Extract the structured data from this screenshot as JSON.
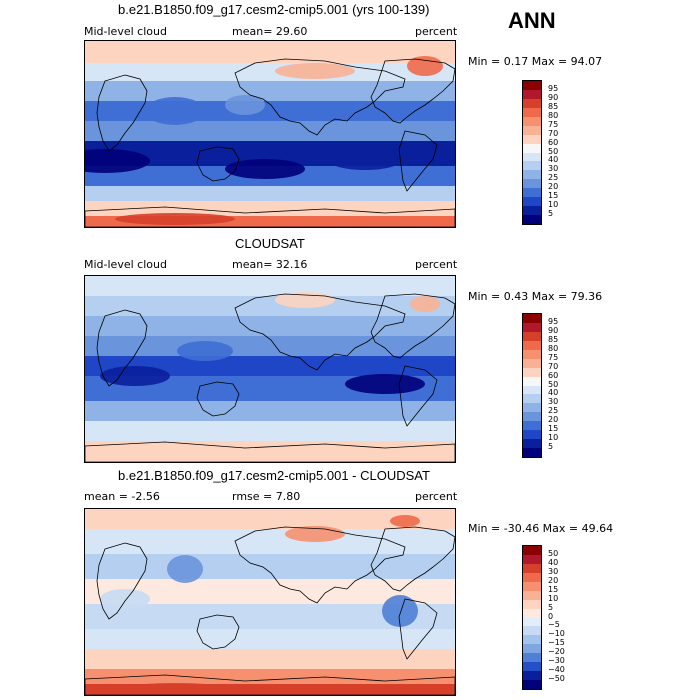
{
  "season": "ANN",
  "panels": [
    {
      "title": "b.e21.B1850.f09_g17.cesm2-cmip5.001 (yrs 100-139)",
      "left_label": "Mid-level cloud",
      "mean_text": "mean=  29.60",
      "unit": "percent",
      "minmax": "Min =   0.17 Max =  94.07",
      "colorbar_labels": [
        "95",
        "90",
        "85",
        "80",
        "75",
        "70",
        "60",
        "50",
        "40",
        "30",
        "25",
        "20",
        "15",
        "10",
        "5"
      ],
      "colorbar_colors": [
        "#8b0000",
        "#b2182b",
        "#d6402b",
        "#ee6a4a",
        "#f6906f",
        "#f9b195",
        "#fcd4c0",
        "#f7f7f7",
        "#d6e6f7",
        "#b4cff0",
        "#8fb3e6",
        "#6a94dc",
        "#3f6ed4",
        "#1f46c7",
        "#0a1f9c",
        "#00007a"
      ],
      "map_style": "model"
    },
    {
      "title": "CLOUDSAT",
      "left_label": "Mid-level cloud",
      "mean_text": "mean=  32.16",
      "unit": "percent",
      "minmax": "Min =   0.43 Max =  79.36",
      "colorbar_labels": [
        "95",
        "90",
        "85",
        "80",
        "75",
        "70",
        "60",
        "50",
        "40",
        "30",
        "25",
        "20",
        "15",
        "10",
        "5"
      ],
      "colorbar_colors": [
        "#8b0000",
        "#b2182b",
        "#d6402b",
        "#ee6a4a",
        "#f6906f",
        "#f9b195",
        "#fcd4c0",
        "#f7f7f7",
        "#d6e6f7",
        "#b4cff0",
        "#8fb3e6",
        "#6a94dc",
        "#3f6ed4",
        "#1f46c7",
        "#0a1f9c",
        "#00007a"
      ],
      "map_style": "obs"
    },
    {
      "title": "b.e21.B1850.f09_g17.cesm2-cmip5.001 - CLOUDSAT",
      "left_label": "mean =   -2.56",
      "mean_text": "rmse =    7.80",
      "unit": "percent",
      "minmax": "Min = -30.46 Max =  49.64",
      "colorbar_labels": [
        "50",
        "40",
        "30",
        "20",
        "15",
        "10",
        "5",
        "0",
        "−5",
        "−10",
        "−15",
        "−20",
        "−30",
        "−40",
        "−50"
      ],
      "colorbar_colors": [
        "#8b0000",
        "#b2182b",
        "#d6402b",
        "#ee6a4a",
        "#f6906f",
        "#f9b195",
        "#fcd4c0",
        "#fde9df",
        "#e2edf9",
        "#c6dbf3",
        "#a4c3ec",
        "#7da6e2",
        "#4f7fd6",
        "#2550c8",
        "#0a1f9c",
        "#00007a"
      ],
      "map_style": "diff"
    }
  ]
}
